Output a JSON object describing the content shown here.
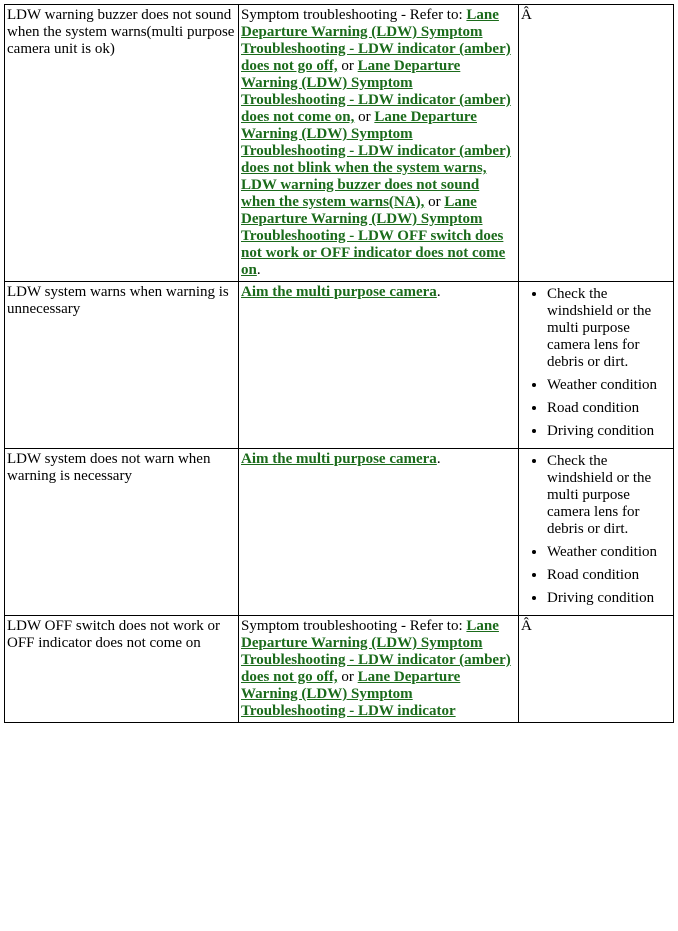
{
  "rows": [
    {
      "symptom": "LDW warning buzzer does not sound when the system warns(multi purpose camera unit is ok)",
      "action": {
        "segments": [
          {
            "t": "text",
            "v": "Symptom troubleshooting - Refer to: "
          },
          {
            "t": "link",
            "v": "Lane Departure Warning (LDW) Symptom Troubleshooting - LDW indicator (amber) does not go off,"
          },
          {
            "t": "text",
            "v": " or "
          },
          {
            "t": "link",
            "v": "Lane Departure Warning (LDW) Symptom Troubleshooting - LDW indicator (amber) does not come on,"
          },
          {
            "t": "text",
            "v": " or "
          },
          {
            "t": "link",
            "v": "Lane Departure Warning (LDW) Symptom Troubleshooting - LDW indicator (amber) does not blink when the system warns, LDW warning buzzer does not sound when the system warns(NA),"
          },
          {
            "t": "text",
            "v": " or "
          },
          {
            "t": "link",
            "v": "Lane Departure Warning (LDW) Symptom Troubleshooting - LDW OFF switch does not work or OFF indicator does not come on"
          },
          {
            "t": "text",
            "v": "."
          }
        ]
      },
      "notes": {
        "plain": "Â",
        "items": []
      }
    },
    {
      "symptom": "LDW system warns when warning is unnecessary",
      "action": {
        "segments": [
          {
            "t": "link",
            "v": "Aim the multi purpose camera"
          },
          {
            "t": "text",
            "v": "."
          }
        ]
      },
      "notes": {
        "plain": "",
        "items": [
          "Check the windshield or the multi purpose camera lens for debris or dirt.",
          "Weather condition",
          "Road condition",
          "Driving condition"
        ]
      }
    },
    {
      "symptom": "LDW system does not warn when warning is necessary",
      "action": {
        "segments": [
          {
            "t": "link",
            "v": "Aim the multi purpose camera"
          },
          {
            "t": "text",
            "v": "."
          }
        ]
      },
      "notes": {
        "plain": "",
        "items": [
          "Check the windshield or the multi purpose camera lens for debris or dirt.",
          "Weather condition",
          "Road condition",
          "Driving condition"
        ]
      }
    },
    {
      "symptom": "LDW OFF switch does not work or OFF indicator does not come on",
      "action": {
        "segments": [
          {
            "t": "text",
            "v": "Symptom troubleshooting - Refer to: "
          },
          {
            "t": "link",
            "v": "Lane Departure Warning (LDW) Symptom Troubleshooting - LDW indicator (amber) does not go off,"
          },
          {
            "t": "text",
            "v": " or "
          },
          {
            "t": "link",
            "v": "Lane Departure Warning (LDW) Symptom Troubleshooting - LDW indicator"
          }
        ]
      },
      "notes": {
        "plain": "Â",
        "items": []
      }
    }
  ]
}
